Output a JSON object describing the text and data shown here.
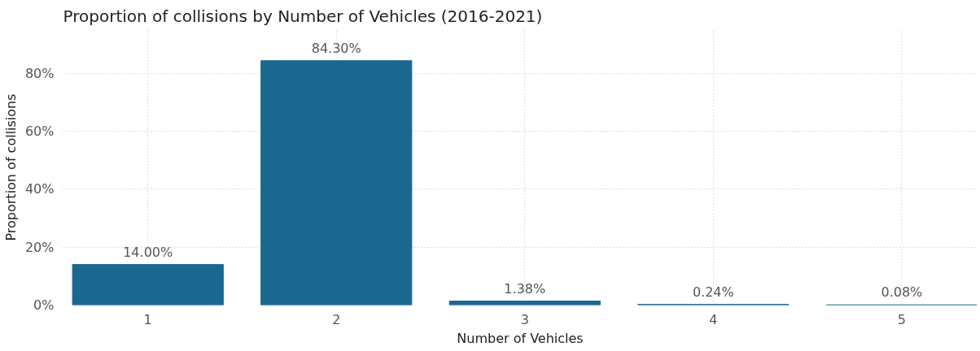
{
  "chart_data": {
    "type": "bar",
    "title": "Proportion of collisions by Number of Vehicles (2016-2021)",
    "xlabel": "Number of Vehicles",
    "ylabel": "Proportion of collisions",
    "categories": [
      "1",
      "2",
      "3",
      "4",
      "5"
    ],
    "values": [
      14.0,
      84.3,
      1.38,
      0.24,
      0.08
    ],
    "value_labels": [
      "14.00%",
      "84.30%",
      "1.38%",
      "0.24%",
      "0.08%"
    ],
    "color": "#1a6890",
    "ylim": [
      0,
      95
    ],
    "yticks": [
      {
        "value": 0,
        "label": "0%"
      },
      {
        "value": 20,
        "label": "20%"
      },
      {
        "value": 40,
        "label": "40%"
      },
      {
        "value": 60,
        "label": "60%"
      },
      {
        "value": 80,
        "label": "80%"
      }
    ],
    "grid": true,
    "line_style": "dotted"
  }
}
